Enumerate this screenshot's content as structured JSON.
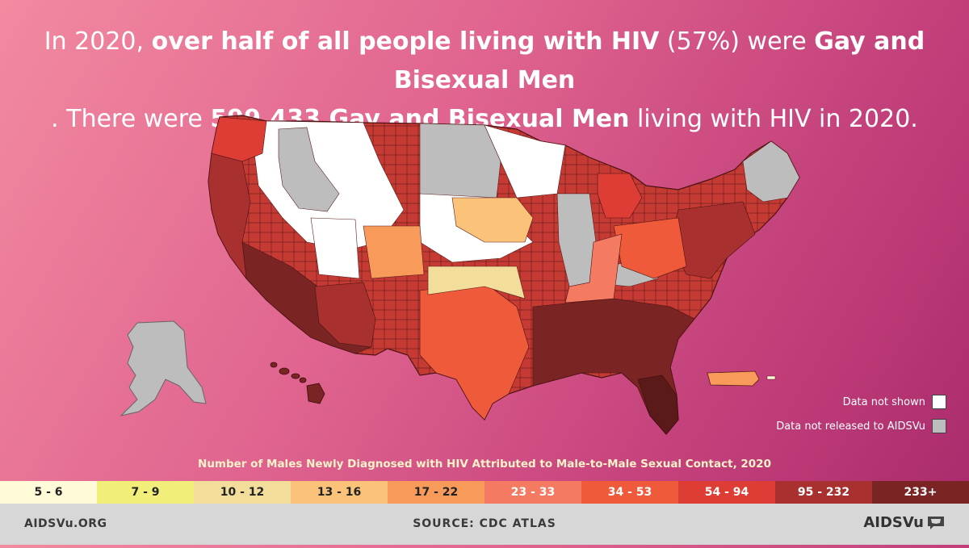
{
  "headline": {
    "p1": "In 2020, ",
    "b1": "over half of all people living with HIV",
    "p2": " (57%) were ",
    "b2": "Gay and Bisexual Men",
    "p3": ". There were ",
    "b3": "599,433 Gay and Bisexual Men",
    "p4": " living with HIV in 2020."
  },
  "map": {
    "legend_not_shown": "Data not shown",
    "legend_not_released": "Data not released to AIDSVu",
    "colors": {
      "not_shown": "#ffffff",
      "not_released": "#bdbdbd"
    }
  },
  "caption": "Number of Males Newly Diagnosed with HIV Attributed to Male-to-Male Sexual Contact, 2020",
  "scale": [
    {
      "label": "5 - 6",
      "color": "#fffbd8"
    },
    {
      "label": "7 - 9",
      "color": "#f2ee7a"
    },
    {
      "label": "10 - 12",
      "color": "#f2dd9a"
    },
    {
      "label": "13 - 16",
      "color": "#fbc27a"
    },
    {
      "label": "17 - 22",
      "color": "#f89a5a"
    },
    {
      "label": "23 - 33",
      "color": "#f47a62"
    },
    {
      "label": "34 - 53",
      "color": "#ee5a3a"
    },
    {
      "label": "54 - 94",
      "color": "#dd3d35"
    },
    {
      "label": "95 - 232",
      "color": "#a8302e"
    },
    {
      "label": "233+",
      "color": "#7a2424"
    }
  ],
  "footer": {
    "left": "AIDSVu.ORG",
    "center": "SOURCE: CDC ATLAS",
    "right": "AIDSVu"
  }
}
